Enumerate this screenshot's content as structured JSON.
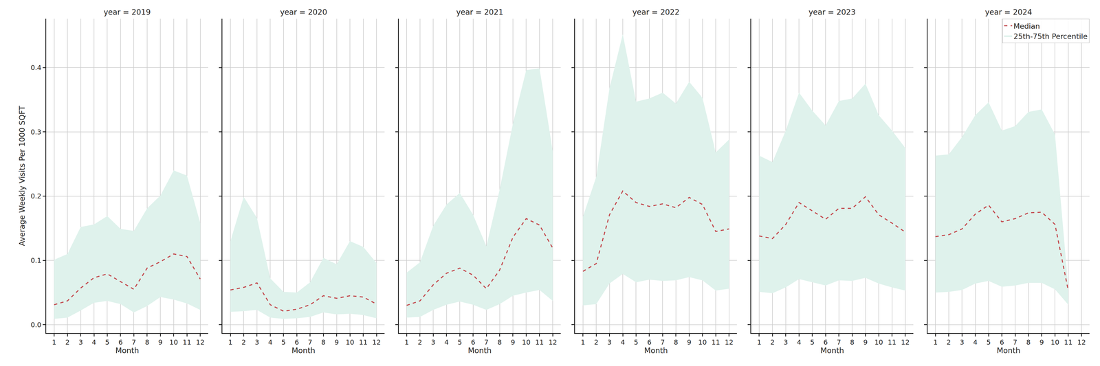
{
  "chart_data": [
    {
      "type": "line",
      "title": "year = 2019",
      "x_label": "Month",
      "y_label": "Average Weekly Visits Per 1000 SQFT",
      "x": [
        1,
        2,
        3,
        4,
        5,
        6,
        7,
        8,
        9,
        10,
        11,
        12
      ],
      "xlim": [
        0.4,
        12.6
      ],
      "xticks": [
        1,
        2,
        3,
        4,
        5,
        6,
        7,
        8,
        9,
        10,
        11,
        12
      ],
      "ylim": [
        -0.013,
        0.476
      ],
      "yticks": [
        {
          "value": 0,
          "label": "0.0"
        },
        0.1,
        0.2,
        0.3,
        0.4
      ],
      "grid": true,
      "series": [
        {
          "name": "25th-75th Percentile",
          "type": "band",
          "color": "#dff2ec",
          "lower": [
            0.009,
            0.011,
            0.022,
            0.034,
            0.037,
            0.032,
            0.019,
            0.029,
            0.043,
            0.039,
            0.033,
            0.023
          ],
          "upper": [
            0.101,
            0.11,
            0.152,
            0.156,
            0.169,
            0.149,
            0.146,
            0.181,
            0.201,
            0.24,
            0.232,
            0.158
          ]
        },
        {
          "name": "Median",
          "type": "line",
          "color": "#c44e52",
          "line_style": "dashed",
          "values": [
            0.031,
            0.037,
            0.057,
            0.073,
            0.079,
            0.067,
            0.055,
            0.088,
            0.098,
            0.11,
            0.106,
            0.071
          ]
        }
      ]
    },
    {
      "type": "line",
      "title": "year = 2020",
      "x_label": "Month",
      "tick_labels": "x",
      "x": [
        1,
        2,
        3,
        4,
        5,
        6,
        7,
        8,
        9,
        10,
        11,
        12
      ],
      "xlim": [
        0.4,
        12.6
      ],
      "xticks": [
        1,
        2,
        3,
        4,
        5,
        6,
        7,
        8,
        9,
        10,
        11,
        12
      ],
      "ylim": [
        -0.013,
        0.476
      ],
      "yticks": [
        {
          "value": 0,
          "label": "0.0"
        },
        0.1,
        0.2,
        0.3,
        0.4
      ],
      "grid": true,
      "series": [
        {
          "name": "25th-75th Percentile",
          "type": "band",
          "color": "#dff2ec",
          "lower": [
            0.02,
            0.021,
            0.023,
            0.011,
            0.009,
            0.01,
            0.012,
            0.019,
            0.016,
            0.017,
            0.015,
            0.01
          ],
          "upper": [
            0.13,
            0.199,
            0.166,
            0.072,
            0.051,
            0.05,
            0.066,
            0.104,
            0.094,
            0.13,
            0.121,
            0.096
          ]
        },
        {
          "name": "Median",
          "type": "line",
          "color": "#c44e52",
          "line_style": "dashed",
          "values": [
            0.054,
            0.058,
            0.065,
            0.031,
            0.021,
            0.024,
            0.031,
            0.045,
            0.041,
            0.045,
            0.043,
            0.032
          ]
        }
      ]
    },
    {
      "type": "line",
      "title": "year = 2021",
      "x_label": "Month",
      "tick_labels": "x",
      "x": [
        1,
        2,
        3,
        4,
        5,
        6,
        7,
        8,
        9,
        10,
        11,
        12
      ],
      "xlim": [
        0.4,
        12.6
      ],
      "xticks": [
        1,
        2,
        3,
        4,
        5,
        6,
        7,
        8,
        9,
        10,
        11,
        12
      ],
      "ylim": [
        -0.013,
        0.476
      ],
      "yticks": [
        {
          "value": 0,
          "label": "0.0"
        },
        0.1,
        0.2,
        0.3,
        0.4
      ],
      "grid": true,
      "series": [
        {
          "name": "25th-75th Percentile",
          "type": "band",
          "color": "#dff2ec",
          "lower": [
            0.011,
            0.012,
            0.023,
            0.031,
            0.036,
            0.031,
            0.023,
            0.032,
            0.045,
            0.05,
            0.054,
            0.037
          ],
          "upper": [
            0.081,
            0.097,
            0.154,
            0.187,
            0.205,
            0.171,
            0.122,
            0.21,
            0.313,
            0.396,
            0.399,
            0.27
          ]
        },
        {
          "name": "Median",
          "type": "line",
          "color": "#c44e52",
          "line_style": "dashed",
          "values": [
            0.03,
            0.037,
            0.062,
            0.08,
            0.088,
            0.077,
            0.056,
            0.085,
            0.136,
            0.165,
            0.155,
            0.119
          ]
        }
      ]
    },
    {
      "type": "line",
      "title": "year = 2022",
      "x_label": "Month",
      "tick_labels": "x",
      "x": [
        1,
        2,
        3,
        4,
        5,
        6,
        7,
        8,
        9,
        10,
        11,
        12
      ],
      "xlim": [
        0.4,
        12.6
      ],
      "xticks": [
        1,
        2,
        3,
        4,
        5,
        6,
        7,
        8,
        9,
        10,
        11,
        12
      ],
      "ylim": [
        -0.013,
        0.476
      ],
      "yticks": [
        {
          "value": 0,
          "label": "0.0"
        },
        0.1,
        0.2,
        0.3,
        0.4
      ],
      "grid": true,
      "series": [
        {
          "name": "25th-75th Percentile",
          "type": "band",
          "color": "#dff2ec",
          "lower": [
            0.03,
            0.032,
            0.064,
            0.079,
            0.066,
            0.07,
            0.068,
            0.069,
            0.074,
            0.069,
            0.053,
            0.056
          ],
          "upper": [
            0.168,
            0.23,
            0.368,
            0.452,
            0.347,
            0.352,
            0.361,
            0.344,
            0.378,
            0.353,
            0.268,
            0.288
          ]
        },
        {
          "name": "Median",
          "type": "line",
          "color": "#c44e52",
          "line_style": "dashed",
          "values": [
            0.083,
            0.095,
            0.171,
            0.208,
            0.19,
            0.184,
            0.188,
            0.182,
            0.198,
            0.187,
            0.145,
            0.149
          ]
        }
      ]
    },
    {
      "type": "line",
      "title": "year = 2023",
      "x_label": "Month",
      "tick_labels": "x",
      "x": [
        1,
        2,
        3,
        4,
        5,
        6,
        7,
        8,
        9,
        10,
        11,
        12
      ],
      "xlim": [
        0.4,
        12.6
      ],
      "xticks": [
        1,
        2,
        3,
        4,
        5,
        6,
        7,
        8,
        9,
        10,
        11,
        12
      ],
      "ylim": [
        -0.013,
        0.476
      ],
      "yticks": [
        {
          "value": 0,
          "label": "0.0"
        },
        0.1,
        0.2,
        0.3,
        0.4
      ],
      "grid": true,
      "series": [
        {
          "name": "25th-75th Percentile",
          "type": "band",
          "color": "#dff2ec",
          "lower": [
            0.051,
            0.049,
            0.058,
            0.071,
            0.066,
            0.061,
            0.069,
            0.068,
            0.073,
            0.064,
            0.058,
            0.053
          ],
          "upper": [
            0.263,
            0.253,
            0.302,
            0.361,
            0.333,
            0.31,
            0.348,
            0.352,
            0.375,
            0.326,
            0.302,
            0.275
          ]
        },
        {
          "name": "Median",
          "type": "line",
          "color": "#c44e52",
          "line_style": "dashed",
          "values": [
            0.138,
            0.134,
            0.156,
            0.19,
            0.177,
            0.164,
            0.181,
            0.181,
            0.199,
            0.171,
            0.158,
            0.144
          ]
        }
      ]
    },
    {
      "type": "line",
      "title": "year = 2024",
      "x_label": "Month",
      "tick_labels": "x",
      "legend": "upper right",
      "x": [
        1,
        2,
        3,
        4,
        5,
        6,
        7,
        8,
        9,
        10,
        11
      ],
      "xlim": [
        0.4,
        12.6
      ],
      "xticks": [
        1,
        2,
        3,
        4,
        5,
        6,
        7,
        8,
        9,
        10,
        11,
        12
      ],
      "ylim": [
        -0.013,
        0.476
      ],
      "yticks": [
        {
          "value": 0,
          "label": "0.0"
        },
        0.1,
        0.2,
        0.3,
        0.4
      ],
      "grid": true,
      "series": [
        {
          "name": "25th-75th Percentile",
          "type": "band",
          "color": "#dff2ec",
          "lower": [
            0.05,
            0.051,
            0.054,
            0.064,
            0.068,
            0.059,
            0.061,
            0.065,
            0.065,
            0.055,
            0.031
          ],
          "upper": [
            0.263,
            0.265,
            0.292,
            0.326,
            0.346,
            0.302,
            0.309,
            0.331,
            0.335,
            0.296,
            0.058
          ]
        },
        {
          "name": "Median",
          "type": "line",
          "color": "#c44e52",
          "line_style": "dashed",
          "values": [
            0.137,
            0.14,
            0.149,
            0.172,
            0.186,
            0.16,
            0.165,
            0.174,
            0.175,
            0.156,
            0.053
          ]
        }
      ]
    }
  ]
}
